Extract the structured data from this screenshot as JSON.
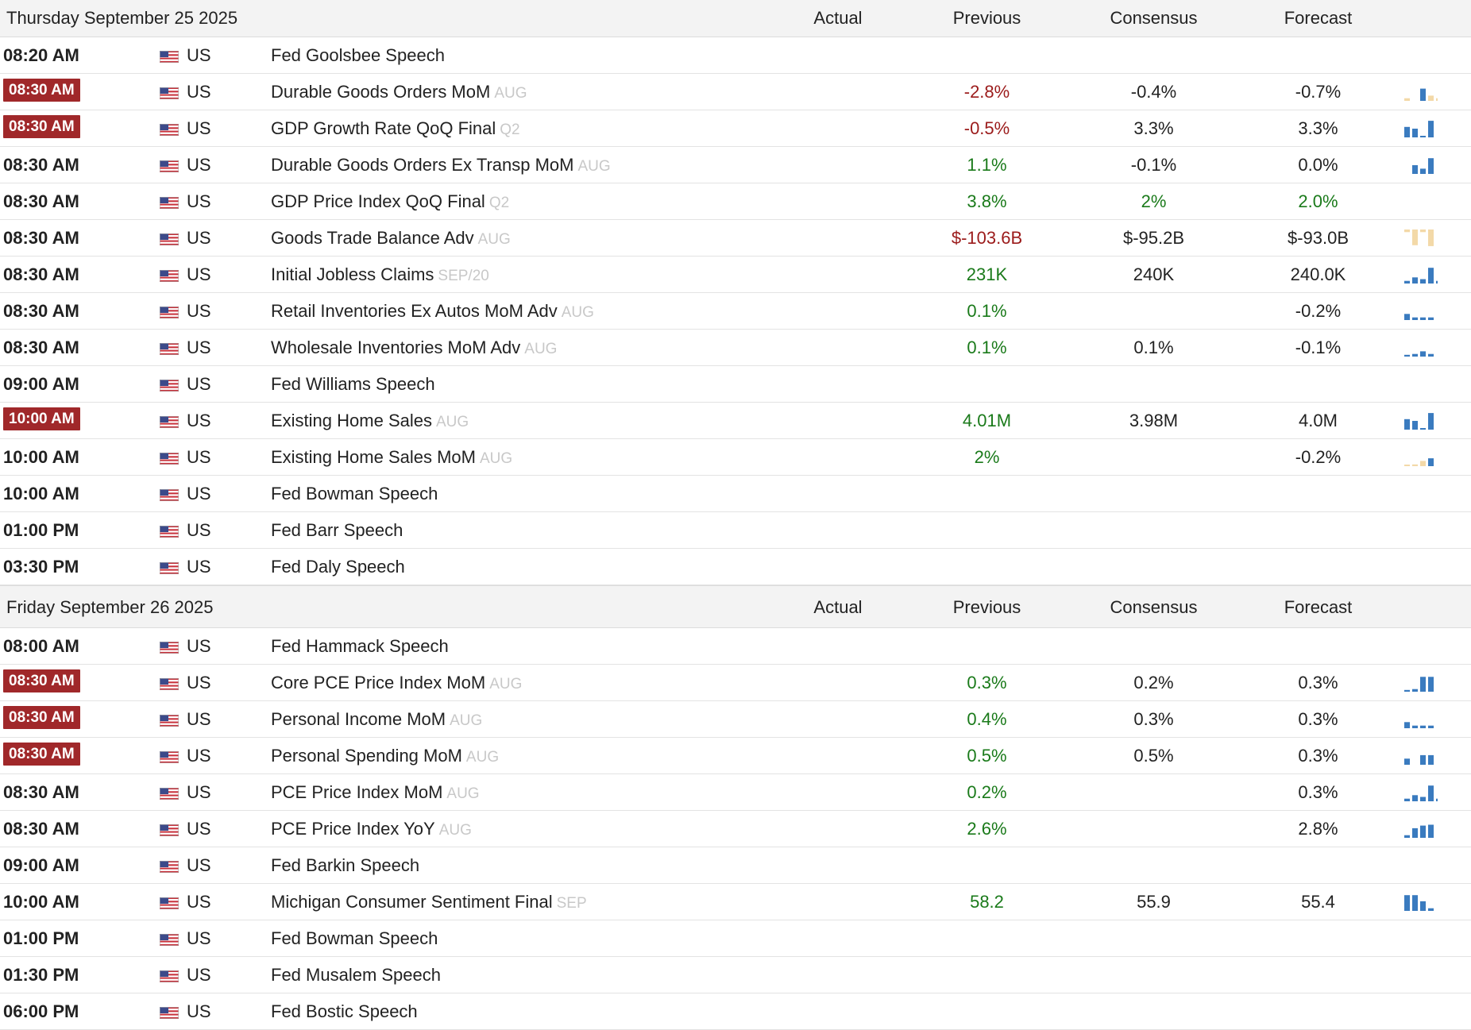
{
  "columns": {
    "actual": "Actual",
    "previous": "Previous",
    "consensus": "Consensus",
    "forecast": "Forecast"
  },
  "colors": {
    "highlight_time_bg": "#a0282a",
    "negative": "#9b1b1b",
    "positive": "#1a7a1a",
    "spark_blue": "#3a7bbf",
    "spark_tan": "#f3d9a8"
  },
  "days": [
    {
      "date": "Thursday September 25 2025",
      "events": [
        {
          "time": "08:20 AM",
          "high": false,
          "country": "US",
          "event": "Fed Goolsbee Speech",
          "ref": "",
          "actual": "",
          "previous": "",
          "previous_tone": "neu",
          "consensus": "",
          "consensus_tone": "neu",
          "forecast": "",
          "forecast_tone": "neu",
          "spark": "none"
        },
        {
          "time": "08:30 AM",
          "high": true,
          "country": "US",
          "event": "Durable Goods Orders MoM",
          "ref": "AUG",
          "actual": "",
          "previous": "-2.8%",
          "previous_tone": "neg",
          "consensus": "-0.4%",
          "consensus_tone": "neu",
          "forecast": "-0.7%",
          "forecast_tone": "neu",
          "spark": "mixed_tan"
        },
        {
          "time": "08:30 AM",
          "high": true,
          "country": "US",
          "event": "GDP Growth Rate QoQ Final",
          "ref": "Q2",
          "actual": "",
          "previous": "-0.5%",
          "previous_tone": "neg",
          "consensus": "3.3%",
          "consensus_tone": "neu",
          "forecast": "3.3%",
          "forecast_tone": "neu",
          "spark": "blue_high"
        },
        {
          "time": "08:30 AM",
          "high": false,
          "country": "US",
          "event": "Durable Goods Orders Ex Transp MoM",
          "ref": "AUG",
          "actual": "",
          "previous": "1.1%",
          "previous_tone": "pos",
          "consensus": "-0.1%",
          "consensus_tone": "neu",
          "forecast": "0.0%",
          "forecast_tone": "neu",
          "spark": "blue_rise"
        },
        {
          "time": "08:30 AM",
          "high": false,
          "country": "US",
          "event": "GDP Price Index QoQ Final",
          "ref": "Q2",
          "actual": "",
          "previous": "3.8%",
          "previous_tone": "pos",
          "consensus": "2%",
          "consensus_tone": "pos",
          "forecast": "2.0%",
          "forecast_tone": "pos",
          "spark": "none"
        },
        {
          "time": "08:30 AM",
          "high": false,
          "country": "US",
          "event": "Goods Trade Balance Adv",
          "ref": "AUG",
          "actual": "",
          "previous": "$-103.6B",
          "previous_tone": "neg",
          "consensus": "$-95.2B",
          "consensus_tone": "neu",
          "forecast": "$-93.0B",
          "forecast_tone": "neu",
          "spark": "tan_neg"
        },
        {
          "time": "08:30 AM",
          "high": false,
          "country": "US",
          "event": "Initial Jobless Claims",
          "ref": "SEP/20",
          "actual": "",
          "previous": "231K",
          "previous_tone": "pos",
          "consensus": "240K",
          "consensus_tone": "neu",
          "forecast": "240.0K",
          "forecast_tone": "neu",
          "spark": "blue_rise2"
        },
        {
          "time": "08:30 AM",
          "high": false,
          "country": "US",
          "event": "Retail Inventories Ex Autos MoM Adv",
          "ref": "AUG",
          "actual": "",
          "previous": "0.1%",
          "previous_tone": "pos",
          "consensus": "",
          "consensus_tone": "neu",
          "forecast": "-0.2%",
          "forecast_tone": "neu",
          "spark": "blue_flat"
        },
        {
          "time": "08:30 AM",
          "high": false,
          "country": "US",
          "event": "Wholesale Inventories MoM Adv",
          "ref": "AUG",
          "actual": "",
          "previous": "0.1%",
          "previous_tone": "pos",
          "consensus": "0.1%",
          "consensus_tone": "neu",
          "forecast": "-0.1%",
          "forecast_tone": "neu",
          "spark": "blue_flat2"
        },
        {
          "time": "09:00 AM",
          "high": false,
          "country": "US",
          "event": "Fed Williams Speech",
          "ref": "",
          "actual": "",
          "previous": "",
          "previous_tone": "neu",
          "consensus": "",
          "consensus_tone": "neu",
          "forecast": "",
          "forecast_tone": "neu",
          "spark": "none"
        },
        {
          "time": "10:00 AM",
          "high": true,
          "country": "US",
          "event": "Existing Home Sales",
          "ref": "AUG",
          "actual": "",
          "previous": "4.01M",
          "previous_tone": "pos",
          "consensus": "3.98M",
          "consensus_tone": "neu",
          "forecast": "4.0M",
          "forecast_tone": "neu",
          "spark": "blue_high"
        },
        {
          "time": "10:00 AM",
          "high": false,
          "country": "US",
          "event": "Existing Home Sales MoM",
          "ref": "AUG",
          "actual": "",
          "previous": "2%",
          "previous_tone": "pos",
          "consensus": "",
          "consensus_tone": "neu",
          "forecast": "-0.2%",
          "forecast_tone": "neu",
          "spark": "mixed_tan2"
        },
        {
          "time": "10:00 AM",
          "high": false,
          "country": "US",
          "event": "Fed Bowman Speech",
          "ref": "",
          "actual": "",
          "previous": "",
          "previous_tone": "neu",
          "consensus": "",
          "consensus_tone": "neu",
          "forecast": "",
          "forecast_tone": "neu",
          "spark": "none"
        },
        {
          "time": "01:00 PM",
          "high": false,
          "country": "US",
          "event": "Fed Barr Speech",
          "ref": "",
          "actual": "",
          "previous": "",
          "previous_tone": "neu",
          "consensus": "",
          "consensus_tone": "neu",
          "forecast": "",
          "forecast_tone": "neu",
          "spark": "none"
        },
        {
          "time": "03:30 PM",
          "high": false,
          "country": "US",
          "event": "Fed Daly Speech",
          "ref": "",
          "actual": "",
          "previous": "",
          "previous_tone": "neu",
          "consensus": "",
          "consensus_tone": "neu",
          "forecast": "",
          "forecast_tone": "neu",
          "spark": "none"
        }
      ]
    },
    {
      "date": "Friday September 26 2025",
      "events": [
        {
          "time": "08:00 AM",
          "high": false,
          "country": "US",
          "event": "Fed Hammack Speech",
          "ref": "",
          "actual": "",
          "previous": "",
          "previous_tone": "neu",
          "consensus": "",
          "consensus_tone": "neu",
          "forecast": "",
          "forecast_tone": "neu",
          "spark": "none"
        },
        {
          "time": "08:30 AM",
          "high": true,
          "country": "US",
          "event": "Core PCE Price Index MoM",
          "ref": "AUG",
          "actual": "",
          "previous": "0.3%",
          "previous_tone": "pos",
          "consensus": "0.2%",
          "consensus_tone": "neu",
          "forecast": "0.3%",
          "forecast_tone": "neu",
          "spark": "blue_rise3"
        },
        {
          "time": "08:30 AM",
          "high": true,
          "country": "US",
          "event": "Personal Income MoM",
          "ref": "AUG",
          "actual": "",
          "previous": "0.4%",
          "previous_tone": "pos",
          "consensus": "0.3%",
          "consensus_tone": "neu",
          "forecast": "0.3%",
          "forecast_tone": "neu",
          "spark": "blue_flat"
        },
        {
          "time": "08:30 AM",
          "high": true,
          "country": "US",
          "event": "Personal Spending MoM",
          "ref": "AUG",
          "actual": "",
          "previous": "0.5%",
          "previous_tone": "pos",
          "consensus": "0.5%",
          "consensus_tone": "neu",
          "forecast": "0.3%",
          "forecast_tone": "neu",
          "spark": "blue_gap"
        },
        {
          "time": "08:30 AM",
          "high": false,
          "country": "US",
          "event": "PCE Price Index MoM",
          "ref": "AUG",
          "actual": "",
          "previous": "0.2%",
          "previous_tone": "pos",
          "consensus": "",
          "consensus_tone": "neu",
          "forecast": "0.3%",
          "forecast_tone": "neu",
          "spark": "blue_rise2"
        },
        {
          "time": "08:30 AM",
          "high": false,
          "country": "US",
          "event": "PCE Price Index YoY",
          "ref": "AUG",
          "actual": "",
          "previous": "2.6%",
          "previous_tone": "pos",
          "consensus": "",
          "consensus_tone": "neu",
          "forecast": "2.8%",
          "forecast_tone": "neu",
          "spark": "blue_rise4"
        },
        {
          "time": "09:00 AM",
          "high": false,
          "country": "US",
          "event": "Fed Barkin Speech",
          "ref": "",
          "actual": "",
          "previous": "",
          "previous_tone": "neu",
          "consensus": "",
          "consensus_tone": "neu",
          "forecast": "",
          "forecast_tone": "neu",
          "spark": "none"
        },
        {
          "time": "10:00 AM",
          "high": false,
          "country": "US",
          "event": "Michigan Consumer Sentiment Final",
          "ref": "SEP",
          "actual": "",
          "previous": "58.2",
          "previous_tone": "pos",
          "consensus": "55.9",
          "consensus_tone": "neu",
          "forecast": "55.4",
          "forecast_tone": "neu",
          "spark": "blue_fall"
        },
        {
          "time": "01:00 PM",
          "high": false,
          "country": "US",
          "event": "Fed Bowman Speech",
          "ref": "",
          "actual": "",
          "previous": "",
          "previous_tone": "neu",
          "consensus": "",
          "consensus_tone": "neu",
          "forecast": "",
          "forecast_tone": "neu",
          "spark": "none"
        },
        {
          "time": "01:30 PM",
          "high": false,
          "country": "US",
          "event": "Fed Musalem Speech",
          "ref": "",
          "actual": "",
          "previous": "",
          "previous_tone": "neu",
          "consensus": "",
          "consensus_tone": "neu",
          "forecast": "",
          "forecast_tone": "neu",
          "spark": "none"
        },
        {
          "time": "06:00 PM",
          "high": false,
          "country": "US",
          "event": "Fed Bostic Speech",
          "ref": "",
          "actual": "",
          "previous": "",
          "previous_tone": "neu",
          "consensus": "",
          "consensus_tone": "neu",
          "forecast": "",
          "forecast_tone": "neu",
          "spark": "none"
        }
      ]
    }
  ]
}
